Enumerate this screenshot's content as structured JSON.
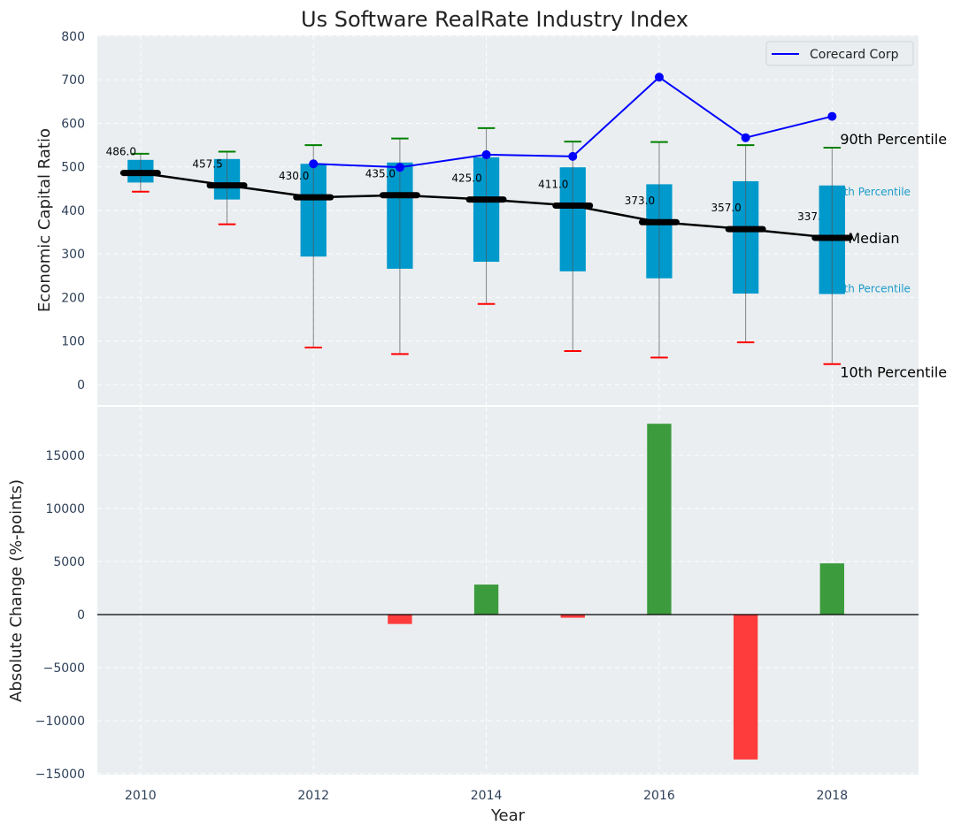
{
  "chart_data": [
    {
      "type": "box",
      "title": "Us Software RealRate Industry Index",
      "xlabel": "",
      "ylabel": "Economic Capital Ratio",
      "ylim": [
        -47,
        802
      ],
      "xlim": [
        2009.5,
        2019.0
      ],
      "grid": true,
      "yticks": [
        0,
        100,
        200,
        300,
        400,
        500,
        600,
        700,
        800
      ],
      "categories": [
        2010,
        2011,
        2012,
        2013,
        2014,
        2015,
        2016,
        2017,
        2018
      ],
      "p10": [
        443,
        368,
        85,
        70,
        185,
        77,
        62,
        97,
        47
      ],
      "p25": [
        464,
        425,
        294,
        266,
        282,
        260,
        244,
        209,
        208
      ],
      "median": [
        486.0,
        457.5,
        430.0,
        435.0,
        425.0,
        411.0,
        373.0,
        357.0,
        337.0
      ],
      "median_labels": [
        "486.0",
        "457.5",
        "430.0",
        "435.0",
        "425.0",
        "411.0",
        "373.0",
        "357.0",
        "337.0"
      ],
      "p75": [
        516,
        518,
        507,
        510,
        522,
        499,
        460,
        467,
        457
      ],
      "p90": [
        530,
        535,
        550,
        565,
        589,
        558,
        557,
        550,
        544
      ],
      "series": [
        {
          "name": "Corecard Corp",
          "x": [
            2012,
            2013,
            2014,
            2015,
            2016,
            2017,
            2018
          ],
          "values": [
            507,
            499,
            528,
            524,
            706,
            567,
            616
          ],
          "color": "#0000ff"
        }
      ],
      "legend": {
        "position": "top-right",
        "entries": [
          "Corecard Corp"
        ]
      },
      "annotations": {
        "p90": "90th Percentile",
        "p75": "75th Percentile",
        "median": "Median",
        "p25": "25th Percentile",
        "p10": "10th Percentile"
      },
      "colors": {
        "box": "#0099cc",
        "p90_cap": "#008000",
        "p10_cap": "#ff0000",
        "median": "#000000",
        "quartile_label": "#1a9bc8",
        "background": "#eaeef0"
      }
    },
    {
      "type": "bar",
      "xlabel": "Year",
      "ylabel": "Absolute Change (%-points)",
      "ylim": [
        -15100,
        19600
      ],
      "grid": true,
      "yticks": [
        -15000,
        -10000,
        -5000,
        0,
        5000,
        10000,
        15000
      ],
      "ytick_labels": [
        "−15000",
        "−10000",
        "−5000",
        "0",
        "5000",
        "10000",
        "15000"
      ],
      "xticks": [
        2010,
        2012,
        2014,
        2016,
        2018
      ],
      "categories": [
        2013,
        2014,
        2015,
        2016,
        2017,
        2018
      ],
      "values": [
        -890,
        2830,
        -300,
        18000,
        -13670,
        4830
      ],
      "colors": {
        "positive": "#3c9b3c",
        "negative": "#ff3c3c"
      }
    }
  ]
}
